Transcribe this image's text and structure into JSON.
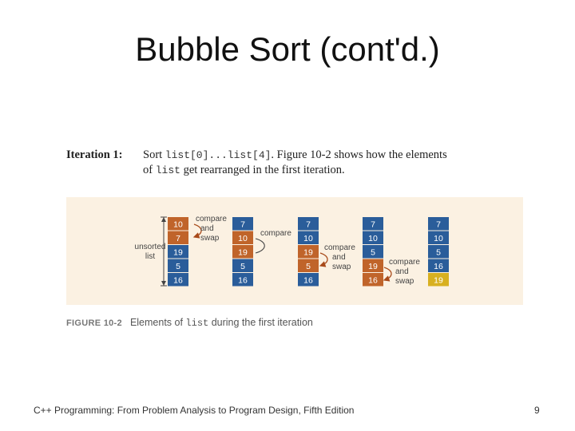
{
  "slide": {
    "title": "Bubble Sort (cont'd.)",
    "footer": "C++ Programming: From Problem Analysis to Program Design, Fifth Edition",
    "page_number": "9"
  },
  "iteration": {
    "label": "Iteration 1:",
    "text_a": "Sort ",
    "code_a": "list[0]...list[4]",
    "text_b": ". Figure 10-2 shows how the elements",
    "text_c": "of ",
    "code_b": "list",
    "text_d": " get rearranged in the first iteration."
  },
  "figure": {
    "columns": [
      [
        "10",
        "7",
        "19",
        "5",
        "16"
      ],
      [
        "7",
        "10",
        "19",
        "5",
        "16"
      ],
      [
        "7",
        "10",
        "19",
        "5",
        "16"
      ],
      [
        "7",
        "10",
        "5",
        "19",
        "16"
      ],
      [
        "7",
        "10",
        "5",
        "16",
        "19"
      ]
    ],
    "cell_states": [
      [
        "orange",
        "orange",
        "blue",
        "blue",
        "blue"
      ],
      [
        "blue",
        "orange",
        "orange",
        "blue",
        "blue"
      ],
      [
        "blue",
        "blue",
        "orange",
        "orange",
        "blue"
      ],
      [
        "blue",
        "blue",
        "blue",
        "orange",
        "orange"
      ],
      [
        "blue",
        "blue",
        "blue",
        "blue",
        "yellow"
      ]
    ],
    "annotations": {
      "swap1": [
        "compare",
        "and",
        "swap"
      ],
      "compare2": "compare",
      "swap3": [
        "compare",
        "and",
        "swap"
      ],
      "swap4": [
        "compare",
        "and",
        "swap"
      ],
      "unsorted": [
        "unsorted",
        "list"
      ]
    },
    "caption_label": "FIGURE 10-2",
    "caption_text_a": "Elements of ",
    "caption_code": "list",
    "caption_text_b": " during the first iteration"
  },
  "colors": {
    "blue": "#2a5d9a",
    "orange": "#c0642a",
    "yellow": "#d8b020",
    "panel": "#fbf1e2",
    "annotation": "#444444",
    "arrow": "#a84a1a"
  }
}
